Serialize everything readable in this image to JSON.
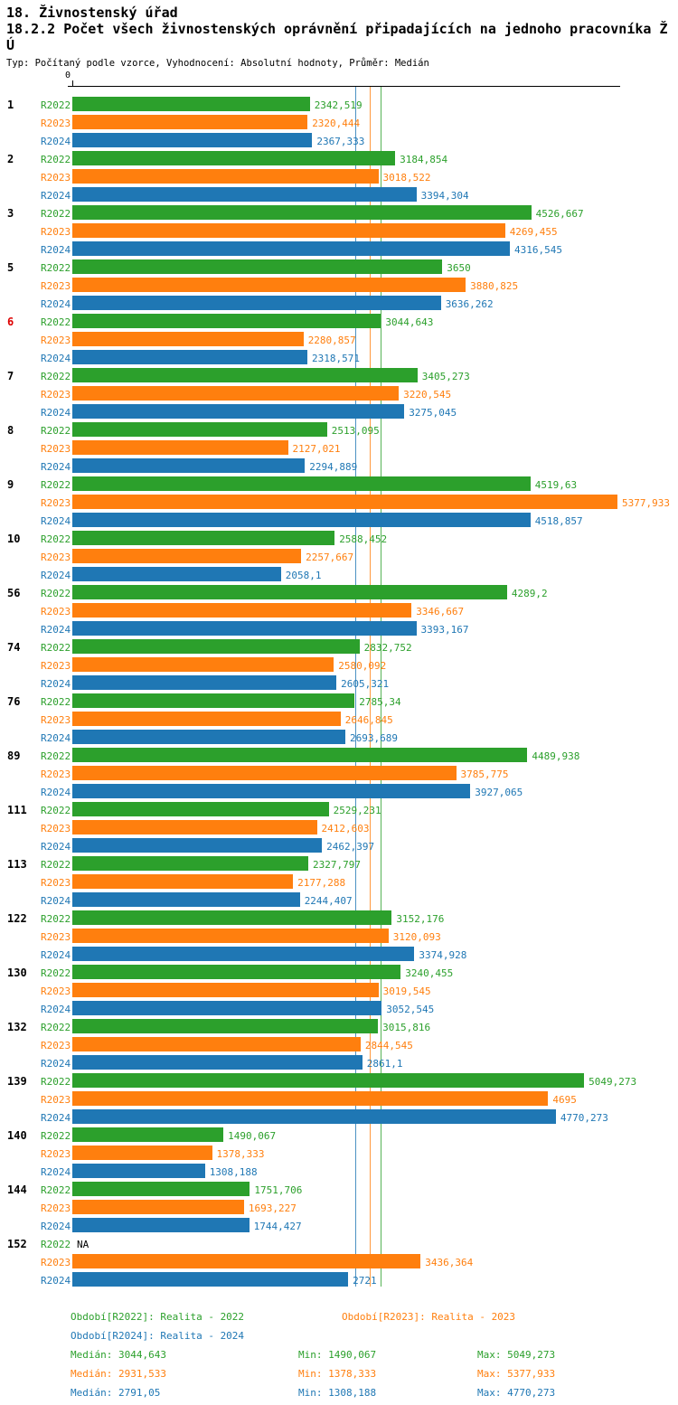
{
  "header": {
    "title1": "18. Živnostenský úřad",
    "title2": "18.2.2 Počet všech živnostenských oprávnění připadajících na jednoho pracovníka ŽÚ",
    "subtitle": "Typ: Počítaný podle vzorce, Vyhodnocení: Absolutní hodnoty, Průměr: Medián"
  },
  "colors": {
    "r2022": "#2ca02c",
    "r2023": "#ff7f0e",
    "r2024": "#1f77b4",
    "highlight": "#dd0000",
    "axis": "#000000"
  },
  "chart_data": {
    "type": "bar",
    "orientation": "horizontal",
    "axis_zero_label": "0",
    "xlim": [
      0,
      5377.933
    ],
    "grid": false,
    "series_names": [
      "R2022",
      "R2023",
      "R2024"
    ],
    "medians": [
      3044.643,
      2931.533,
      2791.05
    ],
    "highlight_groups": [
      "6"
    ],
    "groups": [
      {
        "label": "1",
        "values": [
          2342.519,
          2320.444,
          2367.333
        ],
        "value_labels": [
          "2342,519",
          "2320,444",
          "2367,333"
        ]
      },
      {
        "label": "2",
        "values": [
          3184.854,
          3018.522,
          3394.304
        ],
        "value_labels": [
          "3184,854",
          "3018,522",
          "3394,304"
        ]
      },
      {
        "label": "3",
        "values": [
          4526.667,
          4269.455,
          4316.545
        ],
        "value_labels": [
          "4526,667",
          "4269,455",
          "4316,545"
        ]
      },
      {
        "label": "5",
        "values": [
          3650,
          3880.825,
          3636.262
        ],
        "value_labels": [
          "3650",
          "3880,825",
          "3636,262"
        ]
      },
      {
        "label": "6",
        "values": [
          3044.643,
          2280.857,
          2318.571
        ],
        "value_labels": [
          "3044,643",
          "2280,857",
          "2318,571"
        ]
      },
      {
        "label": "7",
        "values": [
          3405.273,
          3220.545,
          3275.045
        ],
        "value_labels": [
          "3405,273",
          "3220,545",
          "3275,045"
        ]
      },
      {
        "label": "8",
        "values": [
          2513.095,
          2127.021,
          2294.889
        ],
        "value_labels": [
          "2513,095",
          "2127,021",
          "2294,889"
        ]
      },
      {
        "label": "9",
        "values": [
          4519.63,
          5377.933,
          4518.857
        ],
        "value_labels": [
          "4519,63",
          "5377,933",
          "4518,857"
        ]
      },
      {
        "label": "10",
        "values": [
          2588.452,
          2257.667,
          2058.1
        ],
        "value_labels": [
          "2588,452",
          "2257,667",
          "2058,1"
        ]
      },
      {
        "label": "56",
        "values": [
          4289.2,
          3346.667,
          3393.167
        ],
        "value_labels": [
          "4289,2",
          "3346,667",
          "3393,167"
        ]
      },
      {
        "label": "74",
        "values": [
          2832.752,
          2580.092,
          2605.321
        ],
        "value_labels": [
          "2832,752",
          "2580,092",
          "2605,321"
        ]
      },
      {
        "label": "76",
        "values": [
          2785.34,
          2646.845,
          2693.689
        ],
        "value_labels": [
          "2785,34",
          "2646,845",
          "2693,689"
        ]
      },
      {
        "label": "89",
        "values": [
          4489.938,
          3785.775,
          3927.065
        ],
        "value_labels": [
          "4489,938",
          "3785,775",
          "3927,065"
        ]
      },
      {
        "label": "111",
        "values": [
          2529.231,
          2412.603,
          2462.397
        ],
        "value_labels": [
          "2529,231",
          "2412,603",
          "2462,397"
        ]
      },
      {
        "label": "113",
        "values": [
          2327.797,
          2177.288,
          2244.407
        ],
        "value_labels": [
          "2327,797",
          "2177,288",
          "2244,407"
        ]
      },
      {
        "label": "122",
        "values": [
          3152.176,
          3120.093,
          3374.928
        ],
        "value_labels": [
          "3152,176",
          "3120,093",
          "3374,928"
        ]
      },
      {
        "label": "130",
        "values": [
          3240.455,
          3019.545,
          3052.545
        ],
        "value_labels": [
          "3240,455",
          "3019,545",
          "3052,545"
        ]
      },
      {
        "label": "132",
        "values": [
          3015.816,
          2844.545,
          2861.1
        ],
        "value_labels": [
          "3015,816",
          "2844,545",
          "2861,1"
        ]
      },
      {
        "label": "139",
        "values": [
          5049.273,
          4695,
          4770.273
        ],
        "value_labels": [
          "5049,273",
          "4695",
          "4770,273"
        ]
      },
      {
        "label": "140",
        "values": [
          1490.067,
          1378.333,
          1308.188
        ],
        "value_labels": [
          "1490,067",
          "1378,333",
          "1308,188"
        ]
      },
      {
        "label": "144",
        "values": [
          1751.706,
          1693.227,
          1744.427
        ],
        "value_labels": [
          "1751,706",
          "1693,227",
          "1744,427"
        ]
      },
      {
        "label": "152",
        "values": [
          null,
          3436.364,
          2721
        ],
        "value_labels": [
          "NA",
          "3436,364",
          "2721"
        ]
      }
    ]
  },
  "legend": {
    "period_2022": "Období[R2022]: Realita - 2022",
    "period_2023": "Období[R2023]: Realita - 2023",
    "period_2024": "Období[R2024]: Realita - 2024"
  },
  "stats": {
    "r2022": {
      "median": "Medián: 3044,643",
      "min": "Min: 1490,067",
      "max": "Max: 5049,273"
    },
    "r2023": {
      "median": "Medián: 2931,533",
      "min": "Min: 1378,333",
      "max": "Max: 5377,933"
    },
    "r2024": {
      "median": "Medián: 2791,05",
      "min": "Min: 1308,188",
      "max": "Max: 4770,273"
    }
  }
}
